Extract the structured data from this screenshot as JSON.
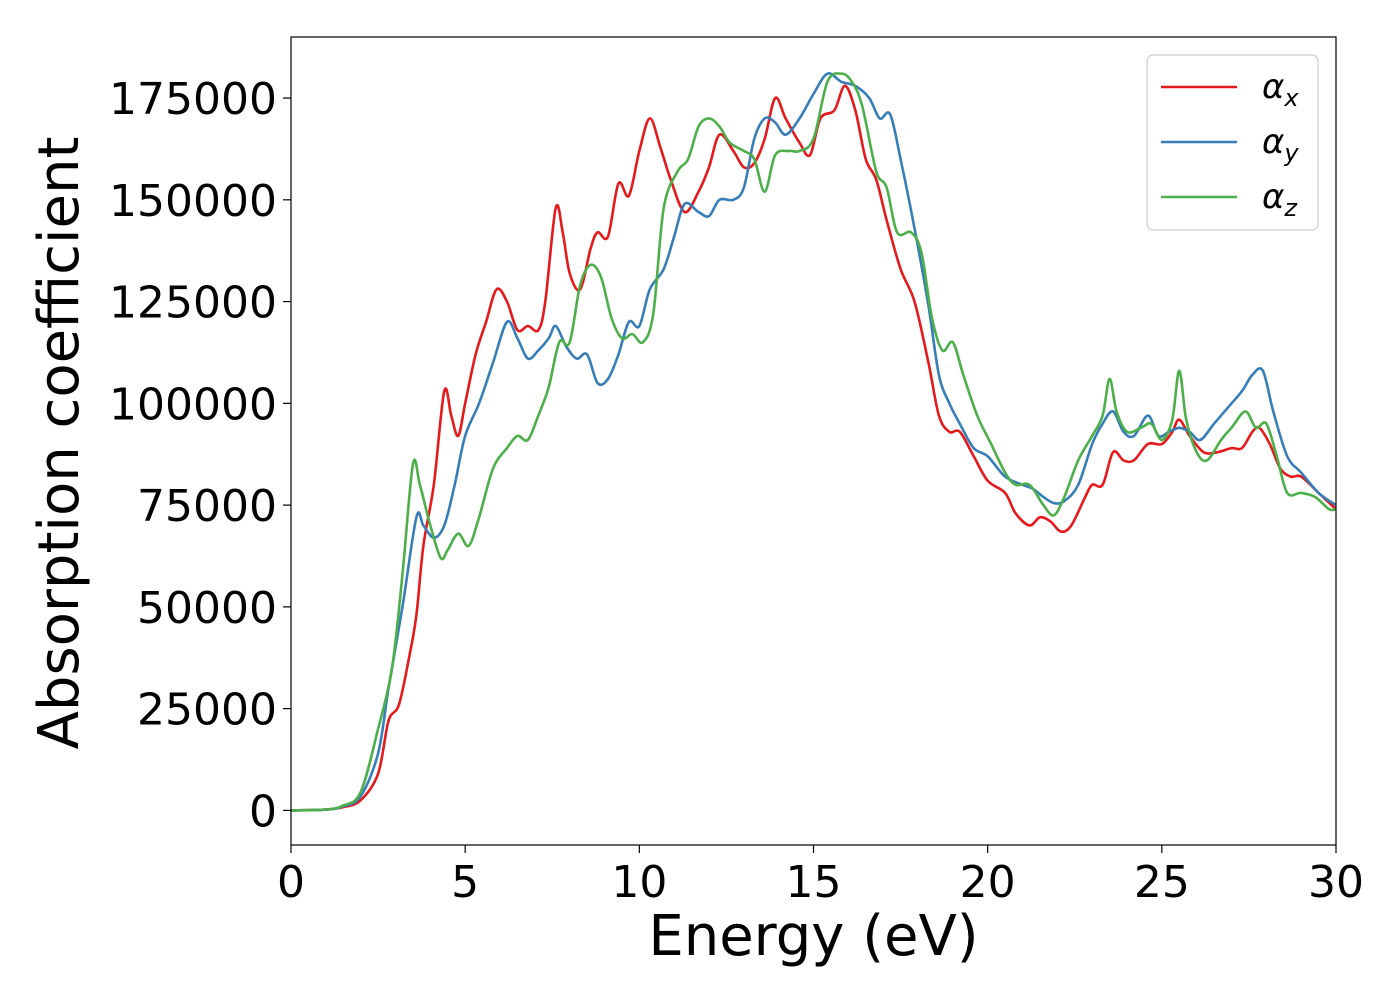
{
  "chart_data": {
    "type": "line",
    "xlabel": "Energy (eV)",
    "ylabel": "Absorption coefficient",
    "xlim": [
      0,
      30
    ],
    "ylim": [
      -8500,
      190000
    ],
    "xticks": [
      0,
      5,
      10,
      15,
      20,
      25,
      30
    ],
    "yticks": [
      0,
      25000,
      50000,
      75000,
      100000,
      125000,
      150000,
      175000
    ],
    "grid": false,
    "legend_position": "top-right",
    "series": [
      {
        "name": "αx",
        "symbol": "α",
        "subscript": "x",
        "color": "#e41a1c",
        "points": [
          [
            0,
            0
          ],
          [
            1.0,
            200
          ],
          [
            1.5,
            800
          ],
          [
            2.0,
            2500
          ],
          [
            2.5,
            9000
          ],
          [
            2.8,
            22000
          ],
          [
            3.1,
            26000
          ],
          [
            3.4,
            38000
          ],
          [
            3.6,
            48000
          ],
          [
            3.8,
            65000
          ],
          [
            4.1,
            80000
          ],
          [
            4.4,
            103000
          ],
          [
            4.6,
            97000
          ],
          [
            4.8,
            92000
          ],
          [
            5.0,
            100000
          ],
          [
            5.3,
            112000
          ],
          [
            5.6,
            120000
          ],
          [
            5.9,
            128000
          ],
          [
            6.2,
            125000
          ],
          [
            6.5,
            118000
          ],
          [
            6.8,
            119000
          ],
          [
            7.1,
            118000
          ],
          [
            7.3,
            125000
          ],
          [
            7.6,
            148000
          ],
          [
            7.8,
            142000
          ],
          [
            8.0,
            132000
          ],
          [
            8.3,
            128000
          ],
          [
            8.6,
            138000
          ],
          [
            8.8,
            142000
          ],
          [
            9.1,
            141000
          ],
          [
            9.4,
            154000
          ],
          [
            9.7,
            151000
          ],
          [
            10.0,
            162000
          ],
          [
            10.3,
            170000
          ],
          [
            10.6,
            163000
          ],
          [
            10.9,
            155000
          ],
          [
            11.3,
            147000
          ],
          [
            11.7,
            152000
          ],
          [
            12.0,
            158000
          ],
          [
            12.3,
            166000
          ],
          [
            12.7,
            162000
          ],
          [
            13.0,
            158000
          ],
          [
            13.3,
            159000
          ],
          [
            13.6,
            165000
          ],
          [
            13.9,
            175000
          ],
          [
            14.2,
            170000
          ],
          [
            14.6,
            164000
          ],
          [
            14.9,
            161000
          ],
          [
            15.2,
            170000
          ],
          [
            15.6,
            172000
          ],
          [
            15.9,
            178000
          ],
          [
            16.2,
            172000
          ],
          [
            16.5,
            160000
          ],
          [
            16.8,
            155000
          ],
          [
            17.1,
            145000
          ],
          [
            17.5,
            133000
          ],
          [
            17.9,
            125000
          ],
          [
            18.3,
            110000
          ],
          [
            18.6,
            97000
          ],
          [
            18.9,
            93000
          ],
          [
            19.2,
            93000
          ],
          [
            19.6,
            87000
          ],
          [
            20.0,
            81000
          ],
          [
            20.5,
            78000
          ],
          [
            20.8,
            73000
          ],
          [
            21.2,
            70000
          ],
          [
            21.5,
            72000
          ],
          [
            21.8,
            71000
          ],
          [
            22.1,
            68500
          ],
          [
            22.4,
            70000
          ],
          [
            22.8,
            77000
          ],
          [
            23.0,
            80000
          ],
          [
            23.3,
            80000
          ],
          [
            23.6,
            88000
          ],
          [
            23.9,
            86000
          ],
          [
            24.2,
            86000
          ],
          [
            24.6,
            90000
          ],
          [
            25.0,
            90000
          ],
          [
            25.3,
            93000
          ],
          [
            25.5,
            96000
          ],
          [
            25.8,
            92000
          ],
          [
            26.2,
            88000
          ],
          [
            26.6,
            88000
          ],
          [
            27.0,
            89000
          ],
          [
            27.3,
            89000
          ],
          [
            27.6,
            93000
          ],
          [
            27.8,
            94000
          ],
          [
            28.1,
            90000
          ],
          [
            28.4,
            84000
          ],
          [
            28.7,
            82000
          ],
          [
            29.0,
            82000
          ],
          [
            29.5,
            78000
          ],
          [
            30.0,
            74000
          ]
        ]
      },
      {
        "name": "αy",
        "symbol": "α",
        "subscript": "y",
        "color": "#377eb8",
        "points": [
          [
            0,
            0
          ],
          [
            1.0,
            200
          ],
          [
            1.5,
            1000
          ],
          [
            2.0,
            3500
          ],
          [
            2.5,
            14000
          ],
          [
            2.8,
            30000
          ],
          [
            3.2,
            50000
          ],
          [
            3.6,
            72000
          ],
          [
            3.8,
            70000
          ],
          [
            4.1,
            67000
          ],
          [
            4.4,
            70000
          ],
          [
            4.7,
            80000
          ],
          [
            5.0,
            92000
          ],
          [
            5.4,
            100000
          ],
          [
            5.8,
            110000
          ],
          [
            6.2,
            120000
          ],
          [
            6.5,
            116000
          ],
          [
            6.8,
            111000
          ],
          [
            7.1,
            113000
          ],
          [
            7.4,
            116000
          ],
          [
            7.6,
            119000
          ],
          [
            7.9,
            114000
          ],
          [
            8.2,
            111000
          ],
          [
            8.5,
            112000
          ],
          [
            8.8,
            105000
          ],
          [
            9.1,
            106000
          ],
          [
            9.4,
            112000
          ],
          [
            9.7,
            120000
          ],
          [
            10.0,
            119000
          ],
          [
            10.3,
            128000
          ],
          [
            10.7,
            133000
          ],
          [
            11.0,
            141000
          ],
          [
            11.3,
            149000
          ],
          [
            11.7,
            147000
          ],
          [
            12.0,
            146000
          ],
          [
            12.3,
            150000
          ],
          [
            12.7,
            150000
          ],
          [
            13.0,
            153000
          ],
          [
            13.3,
            165000
          ],
          [
            13.6,
            170000
          ],
          [
            13.9,
            169000
          ],
          [
            14.2,
            166000
          ],
          [
            14.6,
            170000
          ],
          [
            15.0,
            176000
          ],
          [
            15.4,
            181000
          ],
          [
            15.8,
            179000
          ],
          [
            16.2,
            178000
          ],
          [
            16.6,
            175000
          ],
          [
            16.9,
            170000
          ],
          [
            17.2,
            171000
          ],
          [
            17.5,
            160000
          ],
          [
            17.9,
            143000
          ],
          [
            18.3,
            124000
          ],
          [
            18.6,
            107000
          ],
          [
            18.9,
            100000
          ],
          [
            19.2,
            95000
          ],
          [
            19.6,
            89000
          ],
          [
            20.0,
            87000
          ],
          [
            20.5,
            82000
          ],
          [
            21.0,
            80000
          ],
          [
            21.3,
            79000
          ],
          [
            21.6,
            77000
          ],
          [
            21.9,
            75500
          ],
          [
            22.2,
            76000
          ],
          [
            22.6,
            80000
          ],
          [
            23.0,
            90000
          ],
          [
            23.3,
            95000
          ],
          [
            23.6,
            98000
          ],
          [
            23.9,
            93000
          ],
          [
            24.2,
            92000
          ],
          [
            24.6,
            97000
          ],
          [
            24.9,
            92000
          ],
          [
            25.2,
            93000
          ],
          [
            25.5,
            94000
          ],
          [
            25.8,
            93000
          ],
          [
            26.1,
            91000
          ],
          [
            26.5,
            95000
          ],
          [
            26.9,
            99000
          ],
          [
            27.3,
            103000
          ],
          [
            27.6,
            107000
          ],
          [
            27.9,
            108000
          ],
          [
            28.2,
            98000
          ],
          [
            28.6,
            87000
          ],
          [
            29.0,
            83000
          ],
          [
            29.5,
            78000
          ],
          [
            30.0,
            75000
          ]
        ]
      },
      {
        "name": "αz",
        "symbol": "α",
        "subscript": "z",
        "color": "#4daf4a",
        "points": [
          [
            0,
            0
          ],
          [
            1.0,
            200
          ],
          [
            1.5,
            1200
          ],
          [
            2.0,
            4500
          ],
          [
            2.5,
            20000
          ],
          [
            2.9,
            35000
          ],
          [
            3.2,
            58000
          ],
          [
            3.5,
            85000
          ],
          [
            3.7,
            80000
          ],
          [
            4.0,
            70000
          ],
          [
            4.3,
            62000
          ],
          [
            4.5,
            64000
          ],
          [
            4.8,
            68000
          ],
          [
            5.1,
            65000
          ],
          [
            5.4,
            72000
          ],
          [
            5.8,
            84000
          ],
          [
            6.2,
            89000
          ],
          [
            6.5,
            92000
          ],
          [
            6.8,
            91000
          ],
          [
            7.1,
            97000
          ],
          [
            7.4,
            104000
          ],
          [
            7.7,
            115000
          ],
          [
            8.0,
            115000
          ],
          [
            8.3,
            129000
          ],
          [
            8.6,
            134000
          ],
          [
            8.9,
            131000
          ],
          [
            9.2,
            121000
          ],
          [
            9.5,
            116000
          ],
          [
            9.8,
            117000
          ],
          [
            10.1,
            115000
          ],
          [
            10.4,
            122000
          ],
          [
            10.7,
            148000
          ],
          [
            11.1,
            157000
          ],
          [
            11.4,
            160000
          ],
          [
            11.7,
            168000
          ],
          [
            12.0,
            170000
          ],
          [
            12.3,
            168000
          ],
          [
            12.6,
            164000
          ],
          [
            13.0,
            162000
          ],
          [
            13.3,
            160000
          ],
          [
            13.6,
            152000
          ],
          [
            13.9,
            161000
          ],
          [
            14.3,
            162000
          ],
          [
            14.6,
            162000
          ],
          [
            15.0,
            165000
          ],
          [
            15.4,
            179000
          ],
          [
            15.8,
            181000
          ],
          [
            16.1,
            179000
          ],
          [
            16.4,
            173000
          ],
          [
            16.8,
            157000
          ],
          [
            17.1,
            153000
          ],
          [
            17.4,
            142000
          ],
          [
            17.8,
            142000
          ],
          [
            18.1,
            137000
          ],
          [
            18.4,
            121000
          ],
          [
            18.7,
            113000
          ],
          [
            19.0,
            115000
          ],
          [
            19.3,
            107000
          ],
          [
            19.7,
            97000
          ],
          [
            20.1,
            90000
          ],
          [
            20.5,
            83000
          ],
          [
            20.8,
            80000
          ],
          [
            21.2,
            80000
          ],
          [
            21.6,
            75000
          ],
          [
            21.9,
            72500
          ],
          [
            22.2,
            77000
          ],
          [
            22.6,
            86000
          ],
          [
            23.0,
            92000
          ],
          [
            23.3,
            97000
          ],
          [
            23.5,
            106000
          ],
          [
            23.7,
            98000
          ],
          [
            24.0,
            93000
          ],
          [
            24.4,
            94000
          ],
          [
            24.7,
            95000
          ],
          [
            25.0,
            91000
          ],
          [
            25.3,
            96000
          ],
          [
            25.5,
            108000
          ],
          [
            25.7,
            96000
          ],
          [
            26.0,
            88000
          ],
          [
            26.3,
            86000
          ],
          [
            26.7,
            91000
          ],
          [
            27.0,
            94000
          ],
          [
            27.4,
            98000
          ],
          [
            27.7,
            94000
          ],
          [
            28.0,
            95000
          ],
          [
            28.3,
            87000
          ],
          [
            28.6,
            78000
          ],
          [
            29.0,
            78000
          ],
          [
            29.4,
            77000
          ],
          [
            29.8,
            74000
          ],
          [
            30.0,
            74000
          ]
        ]
      }
    ]
  }
}
